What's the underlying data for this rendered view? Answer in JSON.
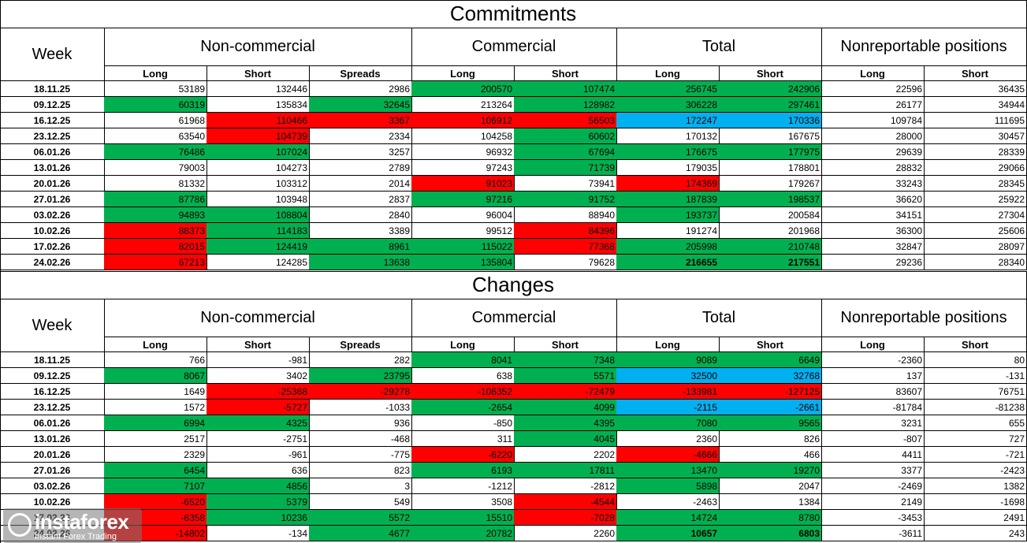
{
  "tables": [
    {
      "title": "Commitments",
      "week_header": "Week",
      "groups": [
        "Non-commercial",
        "Commercial",
        "Total",
        "Nonreportable positions"
      ],
      "subheaders": [
        "Long",
        "Short",
        "Spreads",
        "Long",
        "Short",
        "Long",
        "Short",
        "Long",
        "Short"
      ],
      "rows": [
        {
          "week": "18.11.25",
          "values": [
            53189,
            132446,
            2986,
            200570,
            107474,
            256745,
            242906,
            22596,
            36435
          ]
        },
        {
          "week": "09.12.25",
          "values": [
            60319,
            135834,
            32645,
            213264,
            128982,
            306228,
            297461,
            26177,
            34944
          ]
        },
        {
          "week": "16.12.25",
          "values": [
            61968,
            110466,
            3367,
            106912,
            56503,
            172247,
            170336,
            109784,
            111695
          ]
        },
        {
          "week": "23.12.25",
          "values": [
            63540,
            104739,
            2334,
            104258,
            60602,
            170132,
            167675,
            28000,
            30457
          ]
        },
        {
          "week": "06.01.26",
          "values": [
            76486,
            107024,
            3257,
            96932,
            67694,
            176675,
            177975,
            29639,
            28339
          ]
        },
        {
          "week": "13.01.26",
          "values": [
            79003,
            104273,
            2789,
            97243,
            71739,
            179035,
            178801,
            28832,
            29066
          ]
        },
        {
          "week": "20.01.26",
          "values": [
            81332,
            103312,
            2014,
            91023,
            73941,
            174369,
            179267,
            33243,
            28345
          ]
        },
        {
          "week": "27.01.26",
          "values": [
            87786,
            103948,
            2837,
            97216,
            91752,
            187839,
            198537,
            36620,
            25922
          ]
        },
        {
          "week": "03.02.26",
          "values": [
            94893,
            108804,
            2840,
            96004,
            88940,
            193737,
            200584,
            34151,
            27304
          ]
        },
        {
          "week": "10.02.26",
          "values": [
            88373,
            114183,
            3389,
            99512,
            84396,
            191274,
            201968,
            36300,
            25606
          ]
        },
        {
          "week": "17.02.26",
          "values": [
            82015,
            124419,
            8961,
            115022,
            77368,
            205998,
            210748,
            32847,
            28097
          ]
        },
        {
          "week": "24.02.26",
          "values": [
            67213,
            124285,
            13638,
            135804,
            79628,
            216655,
            217551,
            29236,
            28340
          ]
        }
      ]
    },
    {
      "title": "Changes",
      "week_header": "Week",
      "groups": [
        "Non-commercial",
        "Commercial",
        "Total",
        "Nonreportable positions"
      ],
      "subheaders": [
        "Long",
        "Short",
        "Spreads",
        "Long",
        "Short",
        "Long",
        "Short",
        "Long",
        "Short"
      ],
      "rows": [
        {
          "week": "18.11.25",
          "values": [
            766,
            -981,
            282,
            8041,
            7348,
            9089,
            6649,
            -2360,
            80
          ]
        },
        {
          "week": "09.12.25",
          "values": [
            8067,
            3402,
            23795,
            638,
            5571,
            32500,
            32768,
            137,
            -131
          ]
        },
        {
          "week": "16.12.25",
          "values": [
            1649,
            -25368,
            -29278,
            -106352,
            -72479,
            -133981,
            -127125,
            83607,
            76751
          ]
        },
        {
          "week": "23.12.25",
          "values": [
            1572,
            -5727,
            -1033,
            -2654,
            4099,
            -2115,
            -2661,
            -81784,
            -81238
          ]
        },
        {
          "week": "06.01.26",
          "values": [
            6994,
            4325,
            936,
            -850,
            4395,
            7080,
            9565,
            3231,
            655
          ]
        },
        {
          "week": "13.01.26",
          "values": [
            2517,
            -2751,
            -468,
            311,
            4045,
            2360,
            826,
            -807,
            727
          ]
        },
        {
          "week": "20.01.26",
          "values": [
            2329,
            -961,
            -775,
            -6220,
            2202,
            -4666,
            466,
            4411,
            -721
          ]
        },
        {
          "week": "27.01.26",
          "values": [
            6454,
            636,
            823,
            6193,
            17811,
            13470,
            19270,
            3377,
            -2423
          ]
        },
        {
          "week": "03.02.26",
          "values": [
            7107,
            4856,
            3,
            -1212,
            -2812,
            5898,
            2047,
            -2469,
            1382
          ]
        },
        {
          "week": "10.02.26",
          "values": [
            -6520,
            5379,
            549,
            3508,
            -4544,
            -2463,
            1384,
            2149,
            -1698
          ]
        },
        {
          "week": "17.02.26",
          "values": [
            -6358,
            10236,
            5572,
            15510,
            -7028,
            14724,
            8780,
            -3453,
            2491
          ]
        },
        {
          "week": "24.02.26",
          "values": [
            -14802,
            -134,
            4677,
            20782,
            2260,
            10657,
            6803,
            -3611,
            243
          ]
        }
      ]
    }
  ],
  "watermark": {
    "brand": "instaforex",
    "tagline": "Instant Forex Trading"
  }
}
